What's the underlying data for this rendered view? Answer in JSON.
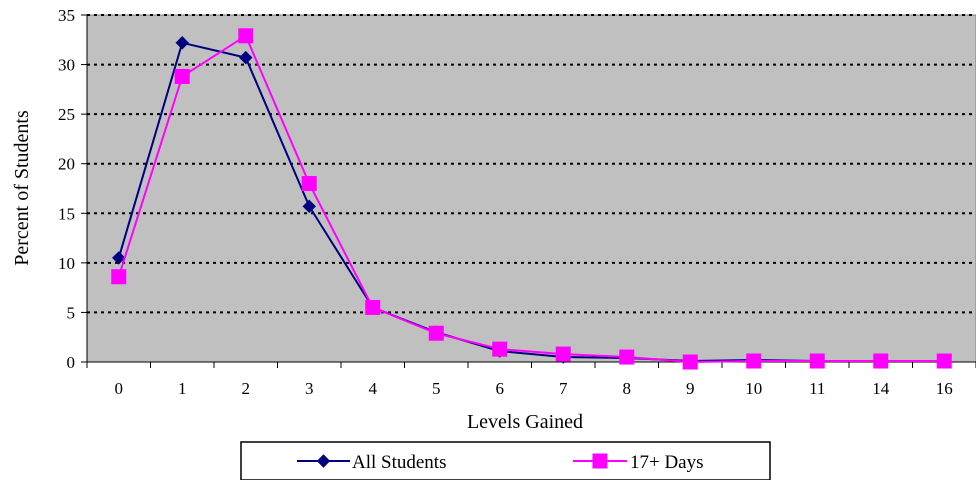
{
  "chart_data": {
    "type": "line",
    "categories": [
      "0",
      "1",
      "2",
      "3",
      "4",
      "5",
      "6",
      "7",
      "8",
      "9",
      "10",
      "11",
      "14",
      "16"
    ],
    "series": [
      {
        "name": "All Students",
        "color": "#000080",
        "marker": "diamond",
        "values": [
          10.5,
          32.2,
          30.7,
          15.7,
          5.5,
          3.0,
          1.1,
          0.5,
          0.4,
          0.1,
          0.2,
          0.1,
          0.1,
          0.1
        ]
      },
      {
        "name": "17+ Days",
        "color": "#FF00FF",
        "marker": "square",
        "values": [
          8.6,
          28.8,
          32.9,
          18.0,
          5.5,
          2.9,
          1.3,
          0.8,
          0.5,
          0.0,
          0.1,
          0.1,
          0.1,
          0.1
        ]
      }
    ],
    "xlabel": "Levels Gained",
    "ylabel": "Percent of Students",
    "ylim": [
      0,
      35
    ],
    "yticks": [
      "0",
      "5",
      "10",
      "15",
      "20",
      "25",
      "30",
      "35"
    ],
    "grid": true,
    "plot_background": "#C0C0C0",
    "legend_position": "bottom"
  }
}
